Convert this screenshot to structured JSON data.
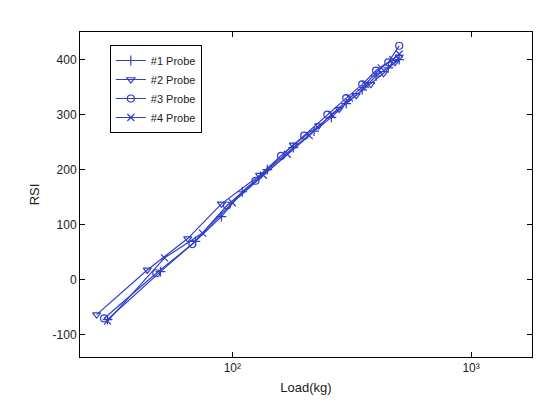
{
  "chart_data": {
    "type": "line",
    "x_label": "Load(kg)",
    "y_label": "RSI",
    "log": "x",
    "grid": false,
    "legend": "top left",
    "xlim": [
      23,
      1800
    ],
    "xticks": [
      {
        "value": 100,
        "label": "10²"
      },
      {
        "value": 1000,
        "label": "10³"
      }
    ],
    "ylim": [
      -140,
      450
    ],
    "yticks": [
      -100,
      0,
      100,
      200,
      300,
      400
    ],
    "series": [
      {
        "name": "#1 Probe",
        "color": "#2f3dc8",
        "marker": "cross",
        "x": [
          30,
          50,
          70,
          90,
          110,
          140,
          180,
          220,
          260,
          300,
          350,
          400,
          450,
          500
        ],
        "values": [
          -72,
          15,
          70,
          115,
          160,
          200,
          240,
          270,
          295,
          320,
          345,
          370,
          385,
          400
        ]
      },
      {
        "name": "#2 Probe",
        "color": "#2f3dc8",
        "marker": "triangle-down",
        "x": [
          27,
          44,
          65,
          90,
          130,
          180,
          230,
          280,
          330,
          380,
          430,
          480,
          500
        ],
        "values": [
          -63,
          18,
          75,
          138,
          190,
          245,
          280,
          310,
          335,
          355,
          375,
          395,
          405
        ]
      },
      {
        "name": "#3 Probe",
        "color": "#2f3dc8",
        "marker": "circle",
        "x": [
          29,
          48,
          68,
          95,
          125,
          160,
          200,
          250,
          300,
          350,
          400,
          450,
          500
        ],
        "values": [
          -70,
          12,
          65,
          135,
          180,
          225,
          262,
          300,
          330,
          355,
          380,
          395,
          425
        ]
      },
      {
        "name": "#4 Probe",
        "color": "#2f3dc8",
        "marker": "x",
        "x": [
          30,
          52,
          75,
          100,
          135,
          170,
          210,
          260,
          310,
          360,
          420,
          470,
          500
        ],
        "values": [
          -75,
          40,
          85,
          140,
          190,
          228,
          262,
          300,
          330,
          355,
          385,
          400,
          410
        ]
      }
    ]
  }
}
